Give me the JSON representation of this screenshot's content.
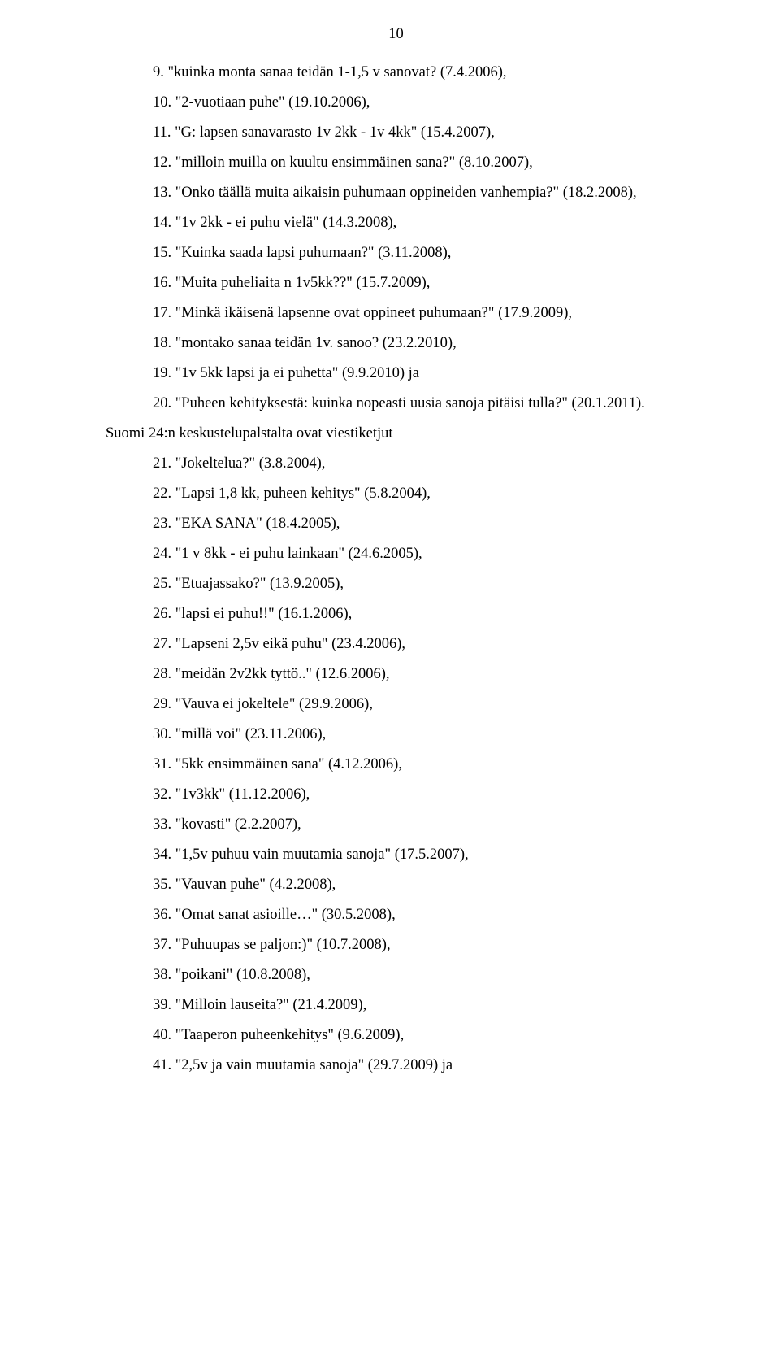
{
  "pageNumber": "10",
  "items": [
    {
      "cls": "item",
      "text": "9. \"kuinka monta sanaa teidän 1-1,5 v sanovat? (7.4.2006),"
    },
    {
      "cls": "item",
      "text": "10. \"2-vuotiaan puhe\" (19.10.2006),"
    },
    {
      "cls": "item",
      "text": "11. \"G: lapsen sanavarasto 1v 2kk - 1v 4kk\" (15.4.2007),"
    },
    {
      "cls": "item",
      "text": "12. \"milloin muilla on kuultu ensimmäinen sana?\" (8.10.2007),"
    },
    {
      "cls": "item",
      "text": "13. \"Onko täällä muita aikaisin puhumaan oppineiden vanhempia?\" (18.2.2008),"
    },
    {
      "cls": "item",
      "text": "14. \"1v 2kk - ei puhu vielä\" (14.3.2008),"
    },
    {
      "cls": "item",
      "text": "15. \"Kuinka saada lapsi puhumaan?\" (3.11.2008),"
    },
    {
      "cls": "item",
      "text": "16. \"Muita puheliaita n 1v5kk??\" (15.7.2009),"
    },
    {
      "cls": "item",
      "text": "17. \"Minkä ikäisenä lapsenne ovat oppineet puhumaan?\" (17.9.2009),"
    },
    {
      "cls": "item",
      "text": "18. \"montako sanaa teidän 1v. sanoo? (23.2.2010),"
    },
    {
      "cls": "item",
      "text": "19. \"1v 5kk lapsi ja ei puhetta\" (9.9.2010) ja"
    },
    {
      "cls": "item",
      "text": "20. \"Puheen kehityksestä: kuinka nopeasti uusia sanoja pitäisi tulla?\" (20.1.2011)."
    },
    {
      "cls": "subhead",
      "text": "Suomi 24:n keskustelupalstalta ovat viestiketjut"
    },
    {
      "cls": "item",
      "text": "21. \"Jokeltelua?\" (3.8.2004),"
    },
    {
      "cls": "item",
      "text": "22. \"Lapsi 1,8 kk, puheen kehitys\" (5.8.2004),"
    },
    {
      "cls": "item",
      "text": "23. \"EKA SANA\" (18.4.2005),"
    },
    {
      "cls": "item",
      "text": "24. \"1 v 8kk - ei puhu lainkaan\" (24.6.2005),"
    },
    {
      "cls": "item",
      "text": "25. \"Etuajassako?\" (13.9.2005),"
    },
    {
      "cls": "item",
      "text": "26. \"lapsi ei puhu!!\" (16.1.2006),"
    },
    {
      "cls": "item",
      "text": "27. \"Lapseni 2,5v eikä puhu\" (23.4.2006),"
    },
    {
      "cls": "item",
      "text": "28. \"meidän 2v2kk tyttö..\" (12.6.2006),"
    },
    {
      "cls": "item",
      "text": "29. \"Vauva ei jokeltele\" (29.9.2006),"
    },
    {
      "cls": "item",
      "text": "30. \"millä voi\" (23.11.2006),"
    },
    {
      "cls": "item",
      "text": "31. \"5kk ensimmäinen sana\" (4.12.2006),"
    },
    {
      "cls": "item",
      "text": "32. \"1v3kk\" (11.12.2006),"
    },
    {
      "cls": "item",
      "text": "33. \"kovasti\" (2.2.2007),"
    },
    {
      "cls": "item",
      "text": "34. \"1,5v puhuu vain muutamia sanoja\" (17.5.2007),"
    },
    {
      "cls": "item",
      "text": "35. \"Vauvan puhe\" (4.2.2008),"
    },
    {
      "cls": "item",
      "text": "36. \"Omat sanat asioille…\" (30.5.2008),"
    },
    {
      "cls": "item",
      "text": "37. \"Puhuupas se paljon:)\" (10.7.2008),"
    },
    {
      "cls": "item",
      "text": "38. \"poikani\" (10.8.2008),"
    },
    {
      "cls": "item",
      "text": "39. \"Milloin lauseita?\" (21.4.2009),"
    },
    {
      "cls": "item",
      "text": "40. \"Taaperon puheenkehitys\" (9.6.2009),"
    },
    {
      "cls": "item",
      "text": "41. \"2,5v ja vain muutamia sanoja\" (29.7.2009) ja"
    }
  ]
}
